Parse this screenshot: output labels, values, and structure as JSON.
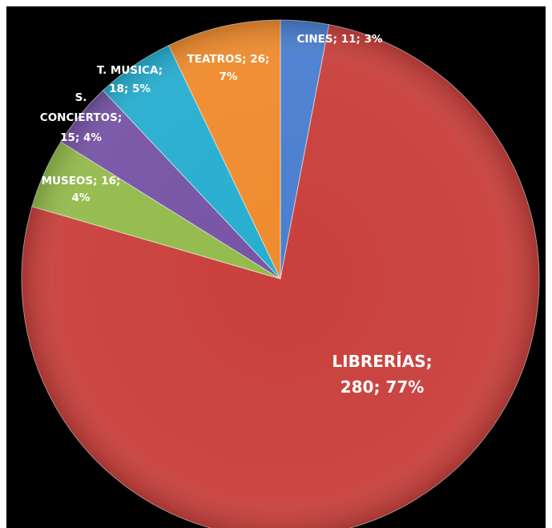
{
  "chart_data": {
    "type": "pie",
    "title": "",
    "legend": "none",
    "slices": [
      {
        "name": "CINES",
        "value": 11,
        "percent": "3%",
        "color": "#4a7fd0",
        "label_lines": [
          "CINES; 11; 3%"
        ]
      },
      {
        "name": "LIBRERÍAS",
        "value": 280,
        "percent": "77%",
        "color": "#c9403c",
        "label_lines": [
          "LIBRERÍAS;",
          "280; 77%"
        ]
      },
      {
        "name": "MUSEOS",
        "value": 16,
        "percent": "4%",
        "color": "#94bb4c",
        "label_lines": [
          "MUSEOS; 16;",
          "4%"
        ]
      },
      {
        "name": "S. CONCIERTOS",
        "value": 15,
        "percent": "4%",
        "color": "#7754a6",
        "label_lines": [
          "S.",
          "CONCIERTOS;",
          "15; 4%"
        ]
      },
      {
        "name": "T. MUSICA",
        "value": 18,
        "percent": "5%",
        "color": "#27aed0",
        "label_lines": [
          "T. MUSICA;",
          "18; 5%"
        ]
      },
      {
        "name": "TEATROS",
        "value": 26,
        "percent": "7%",
        "color": "#ef8b2e",
        "label_lines": [
          "TEATROS; 26;",
          "7%"
        ]
      }
    ]
  }
}
